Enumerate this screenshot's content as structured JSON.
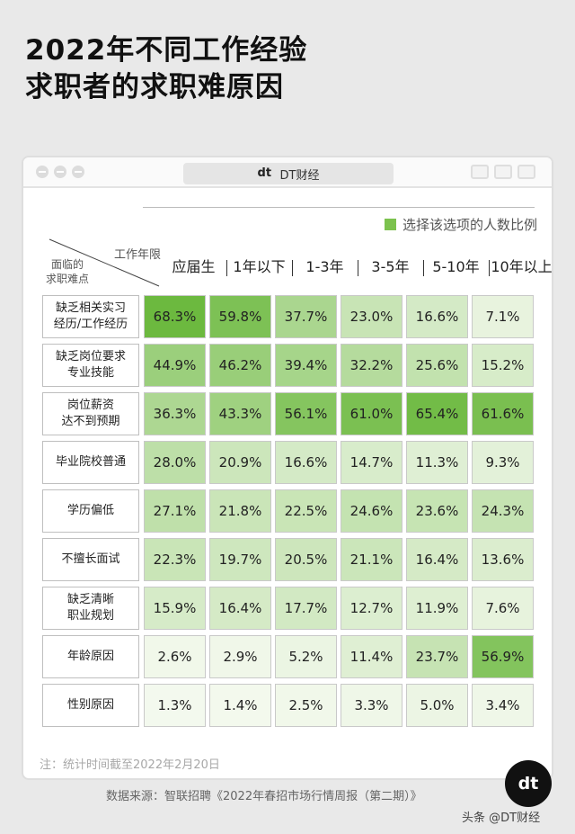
{
  "title": {
    "line1": "2022年不同工作经验",
    "line2": "求职者的求职难原因"
  },
  "window": {
    "brand": "DT财经",
    "logo": "dt"
  },
  "legend": {
    "label": "选择该选项的人数比例",
    "color": "#7cc24e"
  },
  "table": {
    "corner_col": "工作年限",
    "corner_row_line1": "面临的",
    "corner_row_line2": "求职难点"
  },
  "chart_data": {
    "type": "heatmap",
    "columns": [
      "应届生",
      "1年以下",
      "1-3年",
      "3-5年",
      "5-10年",
      "10年以上"
    ],
    "rows": [
      {
        "label_lines": [
          "缺乏相关实习",
          "经历/工作经历"
        ],
        "values": [
          68.3,
          59.8,
          37.7,
          23.0,
          16.6,
          7.1
        ]
      },
      {
        "label_lines": [
          "缺乏岗位要求",
          "专业技能"
        ],
        "values": [
          44.9,
          46.2,
          39.4,
          32.2,
          25.6,
          15.2
        ]
      },
      {
        "label_lines": [
          "岗位薪资",
          "达不到预期"
        ],
        "values": [
          36.3,
          43.3,
          56.1,
          61.0,
          65.4,
          61.6
        ]
      },
      {
        "label_lines": [
          "毕业院校普通"
        ],
        "values": [
          28.0,
          20.9,
          16.6,
          14.7,
          11.3,
          9.3
        ]
      },
      {
        "label_lines": [
          "学历偏低"
        ],
        "values": [
          27.1,
          21.8,
          22.5,
          24.6,
          23.6,
          24.3
        ]
      },
      {
        "label_lines": [
          "不擅长面试"
        ],
        "values": [
          22.3,
          19.7,
          20.5,
          21.1,
          16.4,
          13.6
        ]
      },
      {
        "label_lines": [
          "缺乏清晰",
          "职业规划"
        ],
        "values": [
          15.9,
          16.4,
          17.7,
          12.7,
          11.9,
          7.6
        ]
      },
      {
        "label_lines": [
          "年龄原因"
        ],
        "values": [
          2.6,
          2.9,
          5.2,
          11.4,
          23.7,
          56.9
        ]
      },
      {
        "label_lines": [
          "性别原因"
        ],
        "values": [
          1.3,
          1.4,
          2.5,
          3.3,
          5.0,
          3.4
        ]
      }
    ],
    "value_suffix": "%",
    "color_low": "#f6faf1",
    "color_high": "#6cb93f"
  },
  "note": "注：统计时间截至2022年2月20日",
  "source": "数据来源：智联招聘《2022年春招市场行情周报（第二期）》",
  "badge": "dt",
  "watermark": "头条 @DT财经"
}
